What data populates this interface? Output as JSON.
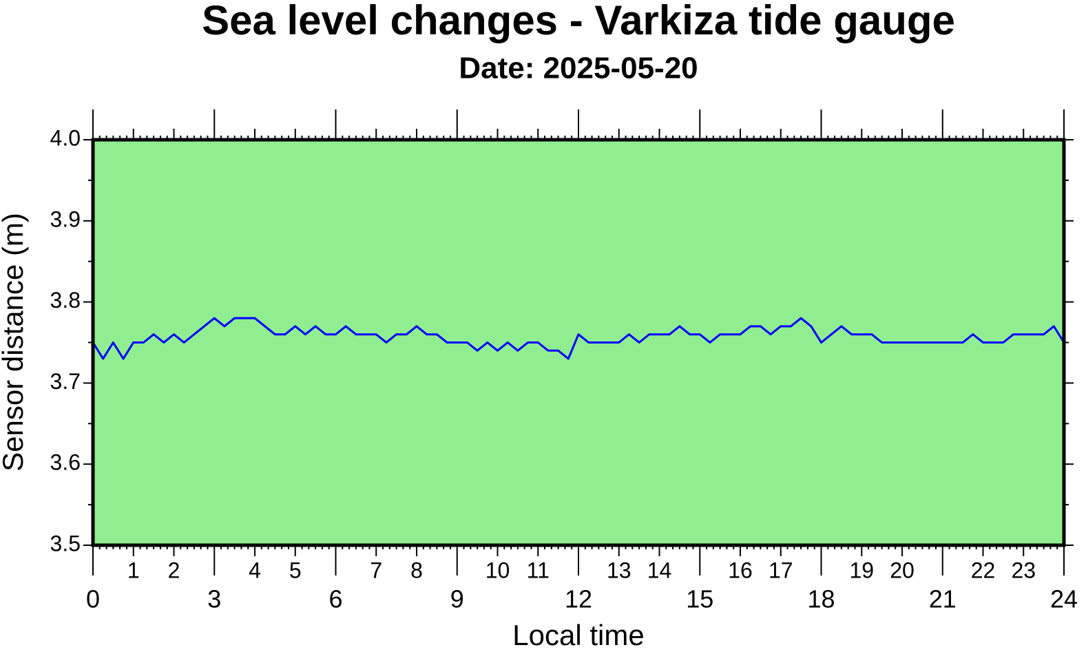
{
  "chart_data": {
    "type": "line",
    "title": "Sea level changes - Varkiza tide gauge",
    "subtitle": "Date: 2025-05-20",
    "x_label": "Local time",
    "y_label": "Sensor distance (m)",
    "background": "#90ee90",
    "xlim": [
      0,
      24
    ],
    "xticks": [
      0,
      3,
      6,
      9,
      12,
      15,
      18,
      21,
      24
    ],
    "xticks_secondary": [
      1,
      2,
      4,
      5,
      7,
      8,
      10,
      11,
      13,
      14,
      16,
      17,
      19,
      20,
      22,
      23
    ],
    "ylim": [
      3.5,
      4.0
    ],
    "yticks": [
      3.5,
      3.6,
      3.7,
      3.8,
      3.9,
      {
        "value": 4.0,
        "label": "4.0"
      }
    ],
    "x": [
      0,
      0.25,
      0.5,
      0.75,
      1,
      1.25,
      1.5,
      1.75,
      2,
      2.25,
      2.5,
      2.75,
      3,
      3.25,
      3.5,
      3.75,
      4,
      4.25,
      4.5,
      4.75,
      5,
      5.25,
      5.5,
      5.75,
      6,
      6.25,
      6.5,
      6.75,
      7,
      7.25,
      7.5,
      7.75,
      8,
      8.25,
      8.5,
      8.75,
      9,
      9.25,
      9.5,
      9.75,
      10,
      10.25,
      10.5,
      10.75,
      11,
      11.25,
      11.5,
      11.75,
      12,
      12.25,
      12.5,
      12.75,
      13,
      13.25,
      13.5,
      13.75,
      14,
      14.25,
      14.5,
      14.75,
      15,
      15.25,
      15.5,
      15.75,
      16,
      16.25,
      16.5,
      16.75,
      17,
      17.25,
      17.5,
      17.75,
      18,
      18.25,
      18.5,
      18.75,
      19,
      19.25,
      19.5,
      19.75,
      20,
      20.25,
      20.5,
      20.75,
      21,
      21.25,
      21.5,
      21.75,
      22,
      22.25,
      22.5,
      22.75,
      23,
      23.25,
      23.5,
      23.75,
      24
    ],
    "series": [
      {
        "color": "#0000ff",
        "values": [
          3.75,
          3.73,
          3.75,
          3.73,
          3.75,
          3.75,
          3.76,
          3.75,
          3.76,
          3.75,
          3.76,
          3.77,
          3.78,
          3.77,
          3.78,
          3.78,
          3.78,
          3.77,
          3.76,
          3.76,
          3.77,
          3.76,
          3.77,
          3.76,
          3.76,
          3.77,
          3.76,
          3.76,
          3.76,
          3.75,
          3.76,
          3.76,
          3.77,
          3.76,
          3.76,
          3.75,
          3.75,
          3.75,
          3.74,
          3.75,
          3.74,
          3.75,
          3.74,
          3.75,
          3.75,
          3.74,
          3.74,
          3.73,
          3.76,
          3.75,
          3.75,
          3.75,
          3.75,
          3.76,
          3.75,
          3.76,
          3.76,
          3.76,
          3.77,
          3.76,
          3.76,
          3.75,
          3.76,
          3.76,
          3.76,
          3.77,
          3.77,
          3.76,
          3.77,
          3.77,
          3.78,
          3.77,
          3.75,
          3.76,
          3.77,
          3.76,
          3.76,
          3.76,
          3.75,
          3.75,
          3.75,
          3.75,
          3.75,
          3.75,
          3.75,
          3.75,
          3.75,
          3.76,
          3.75,
          3.75,
          3.75,
          3.76,
          3.76,
          3.76,
          3.76,
          3.77,
          3.75
        ]
      }
    ]
  }
}
